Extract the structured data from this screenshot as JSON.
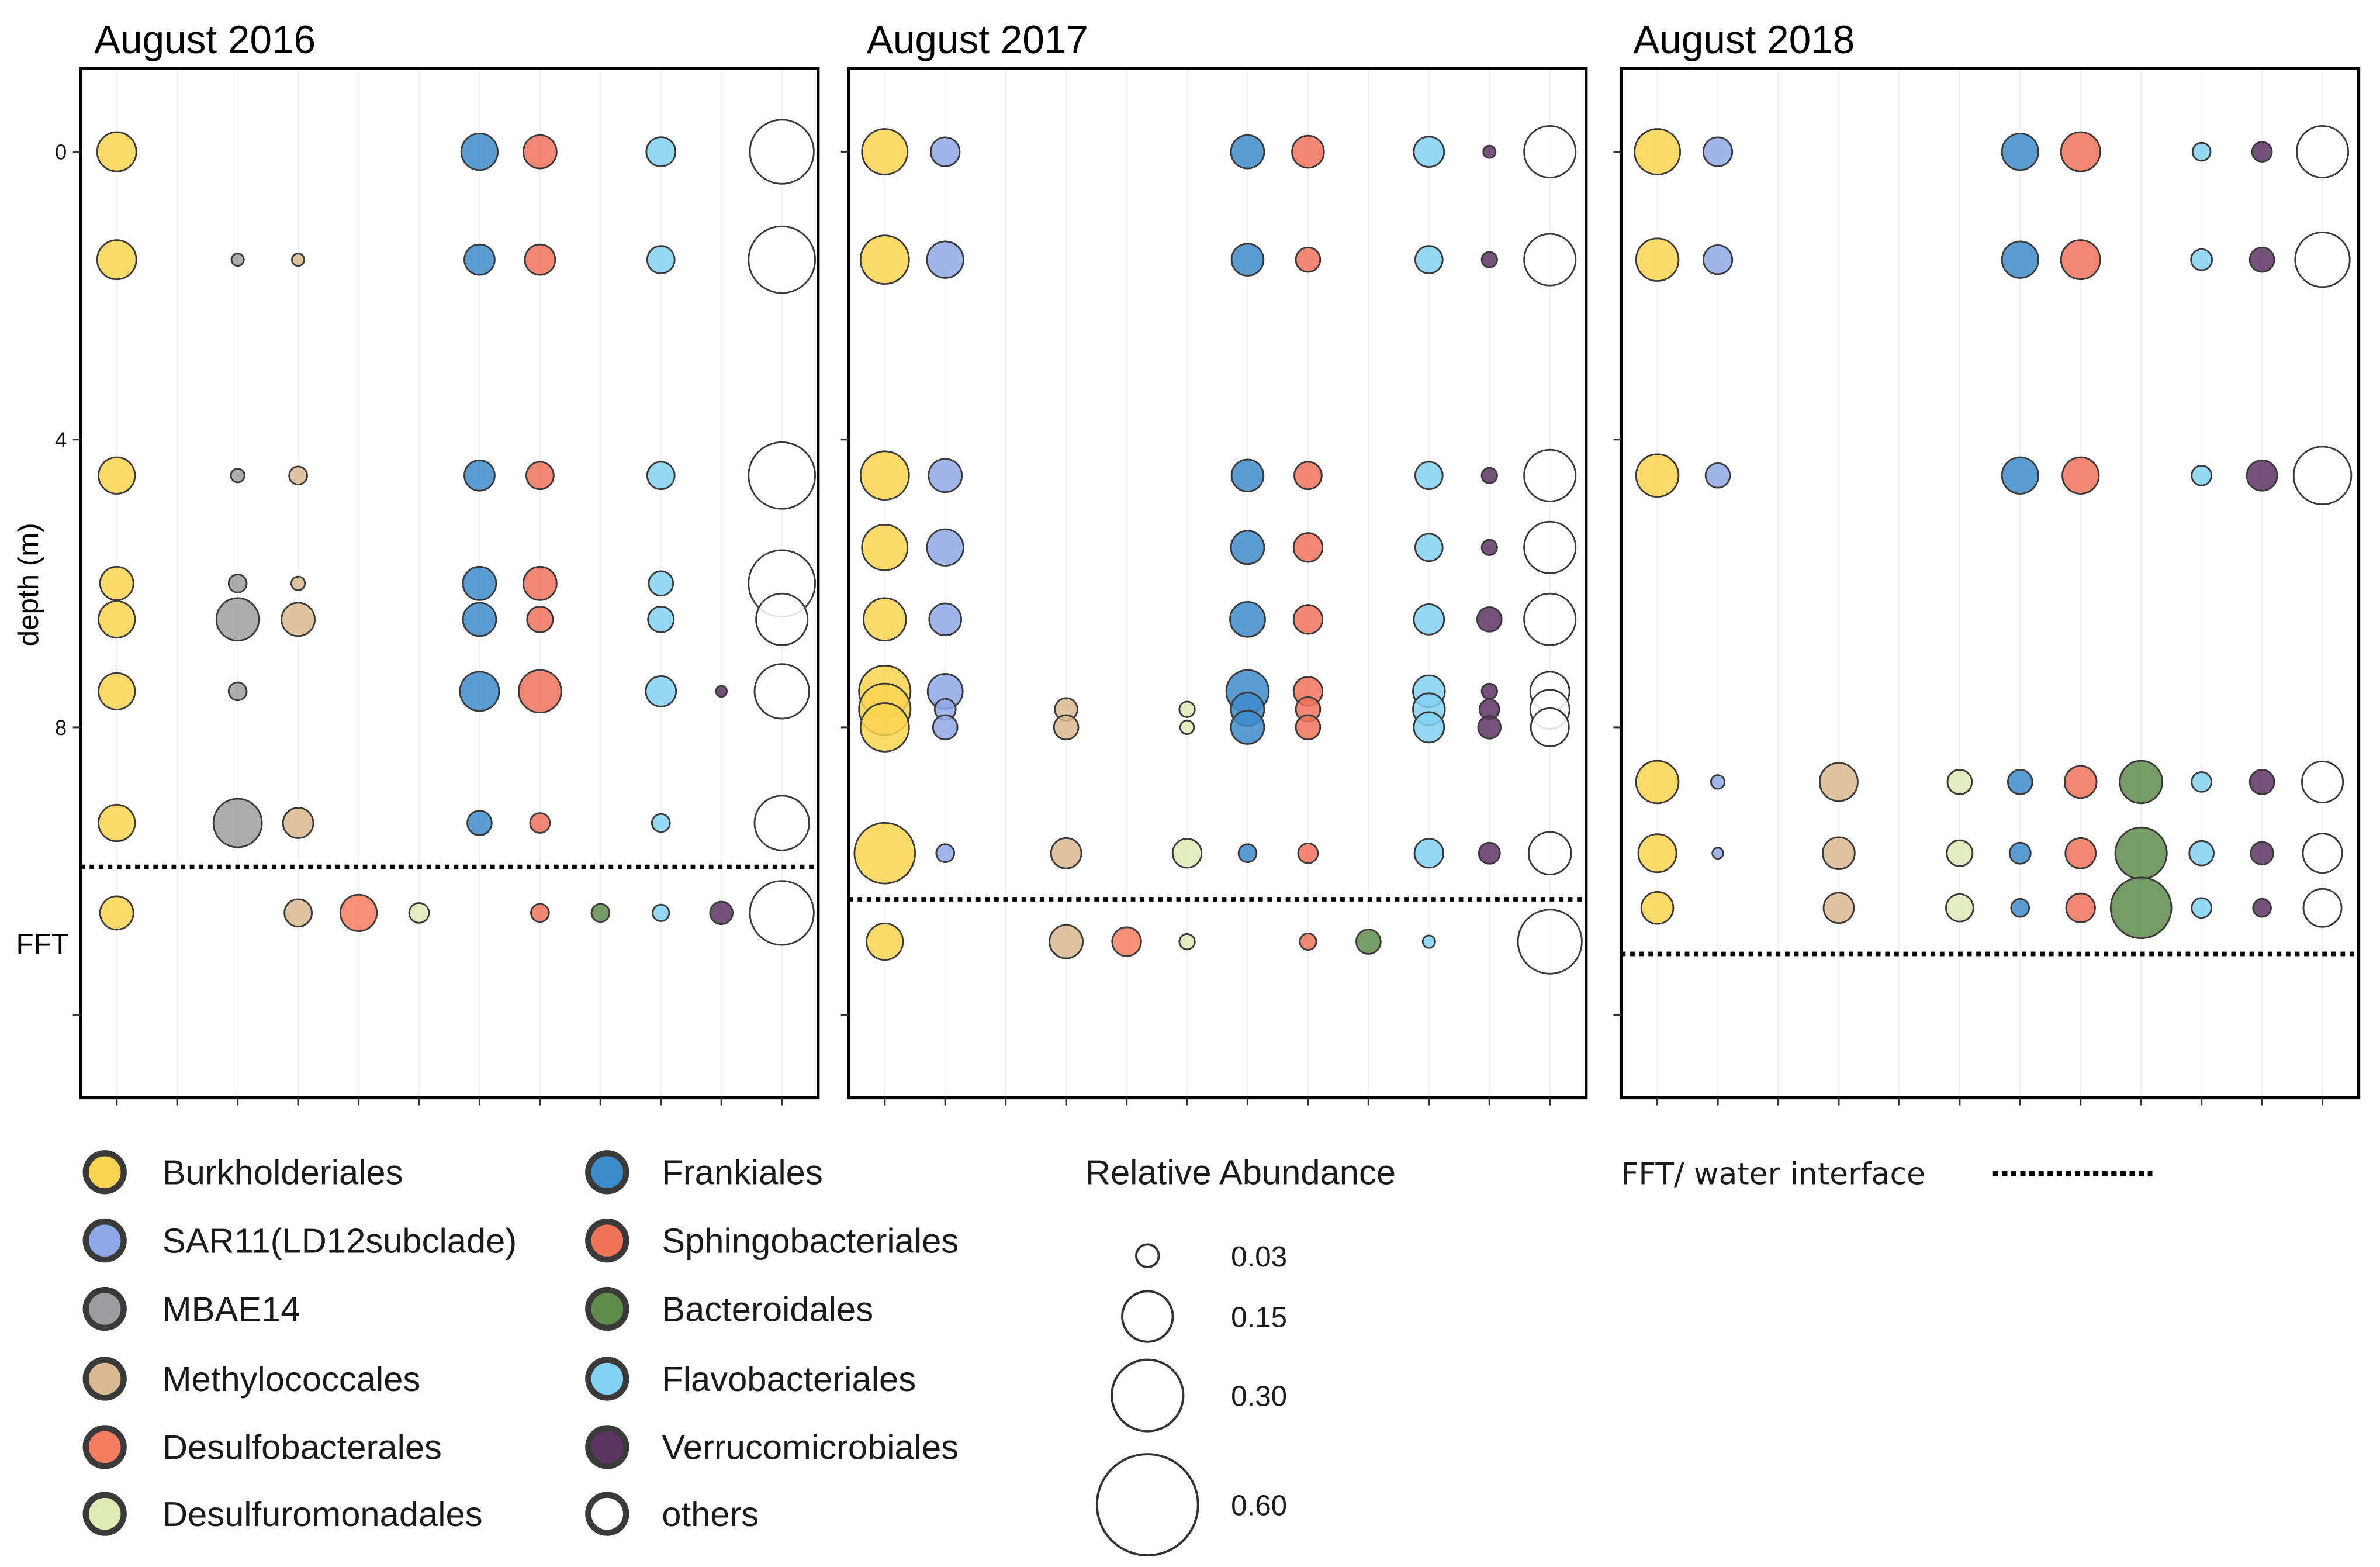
{
  "chart_data": {
    "type": "scatter",
    "subtype": "bubble",
    "ylabel": "depth (m)",
    "y_reversed": true,
    "ylim": [
      -1.16,
      13.15
    ],
    "yticks": [
      {
        "value": 0,
        "label": "0"
      },
      {
        "value": 4,
        "label": "4"
      },
      {
        "value": 8,
        "label": "8"
      },
      {
        "value": 12
      }
    ],
    "y_annotation": {
      "label": "FFT",
      "depth": 11.0
    },
    "categories": [
      {
        "name": "Burkholderiales",
        "color": "#FCD450"
      },
      {
        "name": "SAR11(LD12subclade)",
        "color": "#8FA9E8"
      },
      {
        "name": "MBAE14",
        "color": "#9B9DA0"
      },
      {
        "name": "Methylococcales",
        "color": "#D9B98F"
      },
      {
        "name": "Desulfobacterales",
        "color": "#F57C5F"
      },
      {
        "name": "Desulfuromonadales",
        "color": "#DDEBB4"
      },
      {
        "name": "Frankiales",
        "color": "#3E8BCA"
      },
      {
        "name": "Sphingobacteriales",
        "color": "#F0735A"
      },
      {
        "name": "Bacteroidales",
        "color": "#5F8B4D"
      },
      {
        "name": "Flavobacteriales",
        "color": "#82D1F1"
      },
      {
        "name": "Verrucomicrobiales",
        "color": "#5C3462"
      },
      {
        "name": "others",
        "color": "#FFFFFF"
      }
    ],
    "size_legend": {
      "title": "Relative Abundance",
      "values": [
        0.03,
        0.15,
        0.3,
        0.6
      ],
      "labels": [
        "0.03",
        "0.15",
        "0.30",
        "0.60"
      ]
    },
    "interface_legend": {
      "label": "FFT/ water interface"
    },
    "panels": [
      {
        "title": "August 2016",
        "interface_depth": 9.94,
        "rows": [
          {
            "depth": 0,
            "values": [
              0.09,
              null,
              null,
              null,
              null,
              null,
              0.078,
              0.065,
              null,
              0.05,
              null,
              0.24
            ]
          },
          {
            "depth": 1.5,
            "values": [
              0.09,
              null,
              0.009,
              0.009,
              null,
              null,
              0.054,
              0.054,
              null,
              0.044,
              null,
              0.26
            ]
          },
          {
            "depth": 4.5,
            "values": [
              0.078,
              null,
              0.011,
              0.019,
              null,
              null,
              0.054,
              0.044,
              null,
              0.044,
              null,
              0.26
            ]
          },
          {
            "depth": 6.0,
            "values": [
              0.065,
              null,
              0.019,
              0.011,
              null,
              null,
              0.065,
              0.065,
              null,
              0.035,
              null,
              0.26
            ]
          },
          {
            "depth": 6.5,
            "values": [
              0.078,
              null,
              0.106,
              0.065,
              null,
              null,
              0.065,
              0.039,
              null,
              0.039,
              null,
              0.156
            ]
          },
          {
            "depth": 7.5,
            "values": [
              0.078,
              null,
              0.019,
              null,
              null,
              null,
              0.09,
              0.106,
              null,
              0.054,
              0.007,
              0.175
            ]
          },
          {
            "depth": 9.33,
            "values": [
              0.078,
              null,
              0.138,
              0.054,
              null,
              null,
              0.035,
              0.023,
              null,
              0.019,
              null,
              0.175
            ]
          },
          {
            "depth": 10.58,
            "values": [
              0.065,
              null,
              null,
              0.044,
              0.078,
              0.023,
              null,
              0.019,
              0.019,
              0.016,
              0.03,
              0.24
            ]
          }
        ]
      },
      {
        "title": "August 2017",
        "interface_depth": 10.39,
        "rows": [
          {
            "depth": 0,
            "values": [
              0.122,
              0.049,
              null,
              null,
              null,
              null,
              0.065,
              0.06,
              null,
              0.054,
              0.009,
              0.156
            ]
          },
          {
            "depth": 1.5,
            "values": [
              0.138,
              0.078,
              null,
              null,
              null,
              null,
              0.06,
              0.035,
              null,
              0.044,
              0.014,
              0.156
            ]
          },
          {
            "depth": 4.5,
            "values": [
              0.138,
              0.065,
              null,
              null,
              null,
              null,
              0.06,
              0.044,
              null,
              0.044,
              0.014,
              0.156
            ]
          },
          {
            "depth": 5.5,
            "values": [
              0.122,
              0.078,
              null,
              null,
              null,
              null,
              0.065,
              0.049,
              null,
              0.044,
              0.014,
              0.156
            ]
          },
          {
            "depth": 6.5,
            "values": [
              0.106,
              0.06,
              null,
              null,
              null,
              null,
              0.072,
              0.049,
              null,
              0.054,
              0.035,
              0.156
            ]
          },
          {
            "depth": 7.5,
            "values": [
              0.156,
              0.072,
              null,
              null,
              null,
              null,
              0.106,
              0.049,
              null,
              0.06,
              0.014,
              0.09
            ]
          },
          {
            "depth": 7.75,
            "values": [
              0.156,
              0.026,
              null,
              0.03,
              null,
              0.014,
              0.065,
              0.035,
              null,
              0.06,
              0.023,
              0.09
            ]
          },
          {
            "depth": 8.0,
            "values": [
              0.138,
              0.035,
              null,
              0.035,
              null,
              0.011,
              0.065,
              0.035,
              null,
              0.054,
              0.03,
              0.085
            ]
          },
          {
            "depth": 9.75,
            "values": [
              0.216,
              0.019,
              null,
              0.054,
              null,
              0.049,
              0.019,
              0.023,
              null,
              0.049,
              0.026,
              0.106
            ]
          },
          {
            "depth": 10.98,
            "values": [
              0.078,
              null,
              null,
              0.065,
              0.049,
              0.014,
              null,
              0.016,
              0.035,
              0.009,
              null,
              0.24
            ]
          }
        ]
      },
      {
        "title": "August 2018",
        "interface_depth": 11.15,
        "rows": [
          {
            "depth": 0,
            "values": [
              0.122,
              0.049,
              null,
              null,
              null,
              null,
              0.078,
              0.09,
              null,
              0.019,
              0.023,
              0.156
            ]
          },
          {
            "depth": 1.5,
            "values": [
              0.106,
              0.049,
              null,
              null,
              null,
              null,
              0.078,
              0.09,
              null,
              0.026,
              0.035,
              0.175
            ]
          },
          {
            "depth": 4.5,
            "values": [
              0.106,
              0.035,
              null,
              null,
              null,
              null,
              0.078,
              0.078,
              null,
              0.023,
              0.054,
              0.195
            ]
          },
          {
            "depth": 8.76,
            "values": [
              0.106,
              0.011,
              null,
              0.085,
              null,
              0.035,
              0.035,
              0.06,
              0.106,
              0.023,
              0.035,
              0.099
            ]
          },
          {
            "depth": 9.75,
            "values": [
              0.085,
              0.007,
              null,
              0.06,
              null,
              0.039,
              0.026,
              0.054,
              0.156,
              0.035,
              0.03,
              0.09
            ]
          },
          {
            "depth": 10.51,
            "values": [
              0.06,
              null,
              null,
              0.054,
              null,
              0.044,
              0.019,
              0.049,
              0.216,
              0.023,
              0.019,
              0.085
            ]
          }
        ]
      }
    ]
  }
}
